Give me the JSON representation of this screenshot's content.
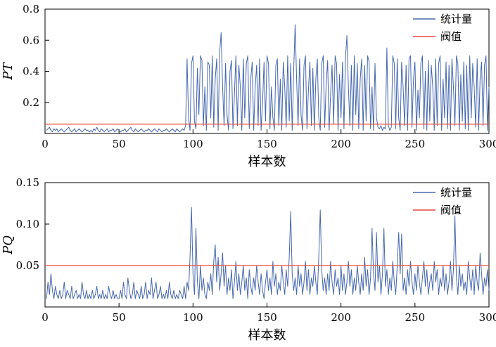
{
  "figure": {
    "background": "#ffffff",
    "series_color": "#4668ac",
    "threshold_color": "#e8473f",
    "axis_color": "#000000"
  },
  "chart_data": [
    {
      "type": "line",
      "ylabel": "PT",
      "xlabel": "样本数",
      "legend": [
        {
          "label": "统计量",
          "color_key": "series_color"
        },
        {
          "label": "阀值",
          "color_key": "threshold_color"
        }
      ],
      "xlim": [
        0,
        300
      ],
      "ylim": [
        0,
        0.8
      ],
      "xticks": [
        0,
        50,
        100,
        150,
        200,
        250,
        300
      ],
      "xtick_labels": [
        "0",
        "50",
        "100",
        "150",
        "200",
        "250",
        "300"
      ],
      "yticks": [
        0.2,
        0.4,
        0.6,
        0.8
      ],
      "ytick_labels": [
        "0.2",
        "0.4",
        "0.6",
        "0.8"
      ],
      "threshold": 0.06,
      "x_start": 1,
      "values": [
        0.02,
        0.03,
        0.04,
        0.02,
        0.01,
        0.03,
        0.02,
        0.03,
        0.01,
        0.02,
        0.03,
        0.02,
        0.01,
        0.02,
        0.03,
        0.04,
        0.02,
        0.01,
        0.02,
        0.03,
        0.01,
        0.02,
        0.03,
        0.02,
        0.01,
        0.02,
        0.03,
        0.02,
        0.02,
        0.01,
        0.02,
        0.01,
        0.03,
        0.02,
        0.04,
        0.02,
        0.01,
        0.03,
        0.02,
        0.01,
        0.02,
        0.03,
        0.01,
        0.02,
        0.02,
        0.03,
        0.01,
        0.02,
        0.03,
        0.02,
        0.01,
        0.02,
        0.02,
        0.03,
        0.01,
        0.02,
        0.03,
        0.04,
        0.02,
        0.01,
        0.03,
        0.02,
        0.01,
        0.02,
        0.03,
        0.02,
        0.01,
        0.02,
        0.02,
        0.03,
        0.02,
        0.01,
        0.02,
        0.03,
        0.02,
        0.01,
        0.03,
        0.02,
        0.01,
        0.02,
        0.02,
        0.03,
        0.02,
        0.01,
        0.02,
        0.03,
        0.02,
        0.01,
        0.03,
        0.02,
        0.01,
        0.02,
        0.03,
        0.02,
        0.05,
        0.48,
        0.1,
        0.02,
        0.45,
        0.5,
        0.08,
        0.03,
        0.42,
        0.12,
        0.5,
        0.47,
        0.05,
        0.3,
        0.02,
        0.46,
        0.44,
        0.1,
        0.5,
        0.04,
        0.35,
        0.48,
        0.02,
        0.52,
        0.65,
        0.3,
        0.05,
        0.45,
        0.12,
        0.02,
        0.4,
        0.47,
        0.03,
        0.25,
        0.5,
        0.05,
        0.44,
        0.3,
        0.02,
        0.48,
        0.1,
        0.45,
        0.5,
        0.03,
        0.35,
        0.46,
        0.02,
        0.3,
        0.44,
        0.05,
        0.48,
        0.02,
        0.2,
        0.46,
        0.08,
        0.5,
        0.45,
        0.03,
        0.3,
        0.1,
        0.02,
        0.44,
        0.48,
        0.05,
        0.35,
        0.02,
        0.46,
        0.3,
        0.04,
        0.5,
        0.08,
        0.45,
        0.02,
        0.4,
        0.7,
        0.35,
        0.05,
        0.48,
        0.12,
        0.02,
        0.44,
        0.5,
        0.03,
        0.28,
        0.46,
        0.05,
        0.42,
        0.02,
        0.35,
        0.48,
        0.1,
        0.02,
        0.45,
        0.5,
        0.04,
        0.32,
        0.47,
        0.02,
        0.25,
        0.44,
        0.06,
        0.5,
        0.45,
        0.02,
        0.38,
        0.1,
        0.46,
        0.03,
        0.48,
        0.63,
        0.3,
        0.05,
        0.44,
        0.02,
        0.5,
        0.12,
        0.45,
        0.03,
        0.35,
        0.48,
        0.02,
        0.44,
        0.08,
        0.5,
        0.46,
        0.03,
        0.3,
        0.02,
        0.45,
        0.1,
        0.04,
        0.03,
        0.05,
        0.02,
        0.04,
        0.03,
        0.55,
        0.05,
        0.02,
        0.04,
        0.5,
        0.45,
        0.03,
        0.48,
        0.1,
        0.02,
        0.46,
        0.3,
        0.05,
        0.44,
        0.02,
        0.48,
        0.5,
        0.04,
        0.35,
        0.46,
        0.02,
        0.28,
        0.1,
        0.45,
        0.5,
        0.03,
        0.4,
        0.02,
        0.47,
        0.08,
        0.44,
        0.3,
        0.02,
        0.48,
        0.05,
        0.45,
        0.5,
        0.02,
        0.35,
        0.1,
        0.46,
        0.03,
        0.44,
        0.02,
        0.48,
        0.3,
        0.05,
        0.5,
        0.45,
        0.02,
        0.38,
        0.08,
        0.46,
        0.03,
        0.44,
        0.02,
        0.5,
        0.1,
        0.45,
        0.3,
        0.04,
        0.48,
        0.02,
        0.35,
        0.46,
        0.05,
        0.44,
        0.5,
        0.02,
        0.3
      ]
    },
    {
      "type": "line",
      "ylabel": "PQ",
      "xlabel": "样本数",
      "legend": [
        {
          "label": "统计量",
          "color_key": "series_color"
        },
        {
          "label": "阀值",
          "color_key": "threshold_color"
        }
      ],
      "xlim": [
        0,
        300
      ],
      "ylim": [
        0,
        0.15
      ],
      "xticks": [
        0,
        50,
        100,
        150,
        200,
        250,
        300
      ],
      "xtick_labels": [
        "0",
        "50",
        "100",
        "150",
        "200",
        "250",
        "300"
      ],
      "yticks": [
        0.05,
        0.1,
        0.15
      ],
      "ytick_labels": [
        "0.05",
        "0.10",
        "0.15"
      ],
      "threshold": 0.05,
      "x_start": 1,
      "values": [
        0.01,
        0.03,
        0.015,
        0.04,
        0.02,
        0.01,
        0.025,
        0.015,
        0.01,
        0.02,
        0.01,
        0.015,
        0.03,
        0.01,
        0.02,
        0.015,
        0.01,
        0.025,
        0.01,
        0.015,
        0.02,
        0.01,
        0.015,
        0.01,
        0.03,
        0.015,
        0.01,
        0.02,
        0.01,
        0.015,
        0.01,
        0.02,
        0.01,
        0.015,
        0.025,
        0.01,
        0.015,
        0.01,
        0.02,
        0.01,
        0.015,
        0.01,
        0.025,
        0.015,
        0.01,
        0.02,
        0.01,
        0.015,
        0.01,
        0.01,
        0.02,
        0.01,
        0.03,
        0.015,
        0.01,
        0.035,
        0.02,
        0.01,
        0.015,
        0.03,
        0.01,
        0.02,
        0.015,
        0.01,
        0.025,
        0.01,
        0.015,
        0.03,
        0.01,
        0.02,
        0.015,
        0.035,
        0.01,
        0.02,
        0.03,
        0.01,
        0.015,
        0.025,
        0.01,
        0.015,
        0.01,
        0.02,
        0.01,
        0.03,
        0.015,
        0.01,
        0.02,
        0.01,
        0.015,
        0.01,
        0.02,
        0.015,
        0.01,
        0.025,
        0.01,
        0.03,
        0.02,
        0.06,
        0.12,
        0.04,
        0.015,
        0.095,
        0.03,
        0.01,
        0.05,
        0.02,
        0.035,
        0.015,
        0.01,
        0.03,
        0.02,
        0.04,
        0.015,
        0.055,
        0.075,
        0.03,
        0.06,
        0.02,
        0.04,
        0.065,
        0.025,
        0.05,
        0.015,
        0.035,
        0.02,
        0.045,
        0.01,
        0.03,
        0.055,
        0.02,
        0.04,
        0.015,
        0.03,
        0.05,
        0.02,
        0.035,
        0.01,
        0.045,
        0.025,
        0.015,
        0.035,
        0.02,
        0.05,
        0.03,
        0.015,
        0.04,
        0.02,
        0.01,
        0.03,
        0.045,
        0.02,
        0.035,
        0.015,
        0.055,
        0.025,
        0.04,
        0.015,
        0.03,
        0.02,
        0.05,
        0.03,
        0.015,
        0.045,
        0.025,
        0.06,
        0.115,
        0.04,
        0.02,
        0.035,
        0.015,
        0.05,
        0.025,
        0.04,
        0.015,
        0.03,
        0.055,
        0.02,
        0.045,
        0.015,
        0.035,
        0.025,
        0.05,
        0.03,
        0.015,
        0.06,
        0.117,
        0.045,
        0.02,
        0.035,
        0.015,
        0.04,
        0.02,
        0.055,
        0.03,
        0.015,
        0.045,
        0.025,
        0.035,
        0.015,
        0.05,
        0.02,
        0.04,
        0.015,
        0.03,
        0.055,
        0.025,
        0.045,
        0.015,
        0.035,
        0.02,
        0.05,
        0.03,
        0.015,
        0.04,
        0.02,
        0.06,
        0.025,
        0.045,
        0.015,
        0.035,
        0.095,
        0.04,
        0.02,
        0.09,
        0.03,
        0.05,
        0.015,
        0.04,
        0.095,
        0.025,
        0.045,
        0.015,
        0.035,
        0.02,
        0.055,
        0.03,
        0.015,
        0.05,
        0.09,
        0.04,
        0.088,
        0.02,
        0.035,
        0.015,
        0.045,
        0.025,
        0.055,
        0.03,
        0.015,
        0.04,
        0.02,
        0.05,
        0.03,
        0.015,
        0.035,
        0.055,
        0.025,
        0.045,
        0.015,
        0.03,
        0.04,
        0.02,
        0.055,
        0.03,
        0.045,
        0.015,
        0.035,
        0.025,
        0.05,
        0.02,
        0.04,
        0.015,
        0.03,
        0.055,
        0.02,
        0.045,
        0.11,
        0.035,
        0.015,
        0.05,
        0.025,
        0.04,
        0.02,
        0.03,
        0.015,
        0.055,
        0.035,
        0.02,
        0.045,
        0.015,
        0.05,
        0.03,
        0.02,
        0.065,
        0.04,
        0.015,
        0.035,
        0.025,
        0.045,
        0.02
      ]
    }
  ]
}
